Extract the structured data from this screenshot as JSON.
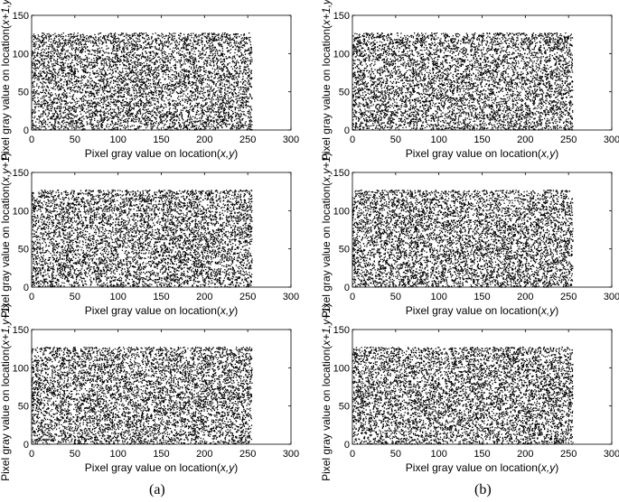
{
  "figure": {
    "caption_a": "(a)",
    "caption_b": "(b)"
  },
  "chart_data": [
    {
      "type": "scatter",
      "panel": "a",
      "row": 1,
      "xlabel_prefix": "Pixel gray value on location(",
      "xlabel_vars": "x,y",
      "xlabel_suffix": ")",
      "ylabel_prefix": "Pixel gray value on location(",
      "ylabel_vars": "x+1,y",
      "ylabel_suffix": ")",
      "xlim": [
        0,
        300
      ],
      "ylim": [
        0,
        150
      ],
      "xticks": [
        0,
        50,
        100,
        150,
        200,
        250,
        300
      ],
      "yticks": [
        0,
        50,
        100,
        150
      ],
      "data_extent": {
        "x": [
          0,
          255
        ],
        "y": [
          0,
          127
        ]
      },
      "point_color": "#000000",
      "distribution": "uniform",
      "points_drawn": 6000,
      "seed": 11,
      "grid": false
    },
    {
      "type": "scatter",
      "panel": "b",
      "row": 1,
      "xlabel_prefix": "Pixel gray value on location(",
      "xlabel_vars": "x,y",
      "xlabel_suffix": ")",
      "ylabel_prefix": "Pixel gray value on location(",
      "ylabel_vars": "x+1,y",
      "ylabel_suffix": ")",
      "xlim": [
        0,
        300
      ],
      "ylim": [
        0,
        150
      ],
      "xticks": [
        0,
        50,
        100,
        150,
        200,
        250,
        300
      ],
      "yticks": [
        0,
        50,
        100,
        150
      ],
      "data_extent": {
        "x": [
          0,
          255
        ],
        "y": [
          0,
          127
        ]
      },
      "point_color": "#000000",
      "distribution": "uniform",
      "points_drawn": 6000,
      "seed": 23,
      "grid": false
    },
    {
      "type": "scatter",
      "panel": "a",
      "row": 2,
      "xlabel_prefix": "Pixel gray value on location(",
      "xlabel_vars": "x,y",
      "xlabel_suffix": ")",
      "ylabel_prefix": "Pixel gray value on location(",
      "ylabel_vars": "x,y+1",
      "ylabel_suffix": ")",
      "xlim": [
        0,
        300
      ],
      "ylim": [
        0,
        150
      ],
      "xticks": [
        0,
        50,
        100,
        150,
        200,
        250,
        300
      ],
      "yticks": [
        0,
        50,
        100,
        150
      ],
      "data_extent": {
        "x": [
          0,
          255
        ],
        "y": [
          0,
          127
        ]
      },
      "point_color": "#000000",
      "distribution": "uniform",
      "points_drawn": 6000,
      "seed": 37,
      "grid": false
    },
    {
      "type": "scatter",
      "panel": "b",
      "row": 2,
      "xlabel_prefix": "Pixel gray value on location(",
      "xlabel_vars": "x,y",
      "xlabel_suffix": ")",
      "ylabel_prefix": "Pixel gray value on location(",
      "ylabel_vars": "x,y+1",
      "ylabel_suffix": ")",
      "xlim": [
        0,
        300
      ],
      "ylim": [
        0,
        150
      ],
      "xticks": [
        0,
        50,
        100,
        150,
        200,
        250,
        300
      ],
      "yticks": [
        0,
        50,
        100,
        150
      ],
      "data_extent": {
        "x": [
          0,
          255
        ],
        "y": [
          0,
          127
        ]
      },
      "point_color": "#000000",
      "distribution": "uniform",
      "points_drawn": 6000,
      "seed": 41,
      "grid": false
    },
    {
      "type": "scatter",
      "panel": "a",
      "row": 3,
      "xlabel_prefix": "Pixel gray value on location(",
      "xlabel_vars": "x,y",
      "xlabel_suffix": ")",
      "ylabel_prefix": "Pixel gray value on location(",
      "ylabel_vars": "x+1,y+1",
      "ylabel_suffix": ")",
      "xlim": [
        0,
        300
      ],
      "ylim": [
        0,
        150
      ],
      "xticks": [
        0,
        50,
        100,
        150,
        200,
        250,
        300
      ],
      "yticks": [
        0,
        50,
        100,
        150
      ],
      "data_extent": {
        "x": [
          0,
          255
        ],
        "y": [
          0,
          127
        ]
      },
      "point_color": "#000000",
      "distribution": "uniform",
      "points_drawn": 6000,
      "seed": 53,
      "grid": false
    },
    {
      "type": "scatter",
      "panel": "b",
      "row": 3,
      "xlabel_prefix": "Pixel gray value on location(",
      "xlabel_vars": "x,y",
      "xlabel_suffix": ")",
      "ylabel_prefix": "Pixel gray value on location(",
      "ylabel_vars": "x+1,y+1",
      "ylabel_suffix": ")",
      "xlim": [
        0,
        300
      ],
      "ylim": [
        0,
        150
      ],
      "xticks": [
        0,
        50,
        100,
        150,
        200,
        250,
        300
      ],
      "yticks": [
        0,
        50,
        100,
        150
      ],
      "data_extent": {
        "x": [
          0,
          255
        ],
        "y": [
          0,
          127
        ]
      },
      "point_color": "#000000",
      "distribution": "uniform",
      "points_drawn": 6000,
      "seed": 67,
      "grid": false
    }
  ]
}
